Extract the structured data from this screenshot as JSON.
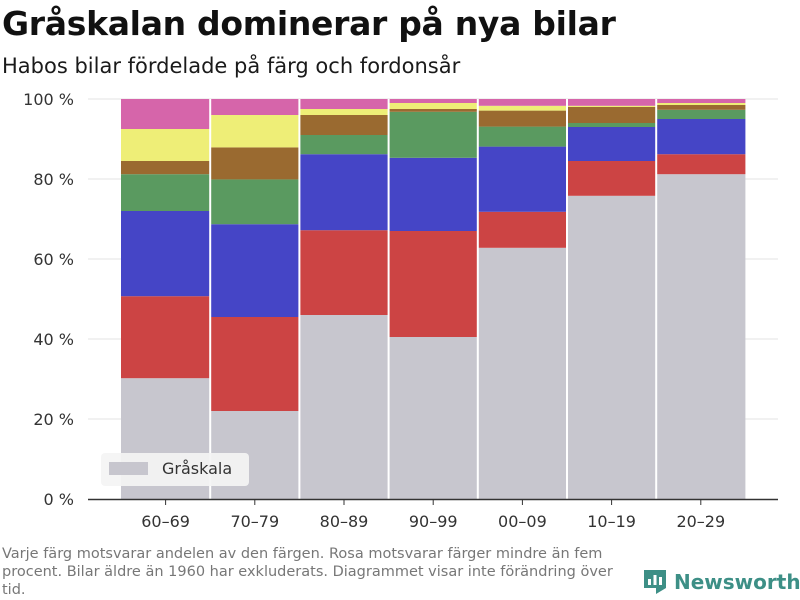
{
  "header": {
    "title": "Gråskalan dominerar på nya bilar",
    "subtitle": "Habos bilar fördelade på färg och fordonsår"
  },
  "footer": {
    "note": "Varje färg motsvarar andelen av den färgen. Rosa motsvarar färger mindre än fem procent. Bilar äldre än 1960 har exkluderats. Diagrammet visar inte förändring över tid.",
    "brand": "Newsworthy"
  },
  "colors": {
    "gray": "#c7c6ce",
    "red": "#cc4444",
    "blue": "#4545c6",
    "green": "#5a9a60",
    "brown": "#9a6a30",
    "yellow": "#eeee77",
    "pink": "#d665aa",
    "brand": "#3d8f86"
  },
  "chart_data": {
    "type": "bar",
    "stacked": true,
    "categories": [
      "60–69",
      "70–79",
      "80–89",
      "90–99",
      "00–09",
      "10–19",
      "20–29"
    ],
    "series": [
      {
        "name": "Gråskala",
        "color": "#c7c6ce",
        "values": [
          30.2,
          22.0,
          46.0,
          40.5,
          62.8,
          75.8,
          81.2
        ]
      },
      {
        "color": "#cc4444",
        "values": [
          20.5,
          23.5,
          21.2,
          26.5,
          9.0,
          8.7,
          5.0
        ]
      },
      {
        "color": "#4545c6",
        "values": [
          21.3,
          23.2,
          19.0,
          18.3,
          16.3,
          8.5,
          8.8
        ]
      },
      {
        "color": "#5a9a60",
        "values": [
          9.2,
          11.2,
          4.8,
          11.5,
          5.0,
          1.0,
          2.3
        ]
      },
      {
        "color": "#9a6a30",
        "values": [
          3.3,
          8.0,
          5.0,
          0.7,
          4.0,
          4.0,
          1.2
        ]
      },
      {
        "color": "#eeee77",
        "values": [
          8.0,
          8.1,
          1.5,
          1.5,
          1.2,
          0.3,
          0.5
        ]
      },
      {
        "color": "#d665aa",
        "values": [
          7.5,
          4.0,
          2.5,
          1.0,
          1.7,
          1.7,
          1.0
        ]
      }
    ],
    "y_ticks": [
      "0 %",
      "20 %",
      "40 %",
      "60 %",
      "80 %",
      "100 %"
    ],
    "ylim": [
      0,
      100
    ],
    "grid": true,
    "legend": {
      "position": "bottom-left",
      "entries": [
        "Gråskala"
      ]
    }
  }
}
